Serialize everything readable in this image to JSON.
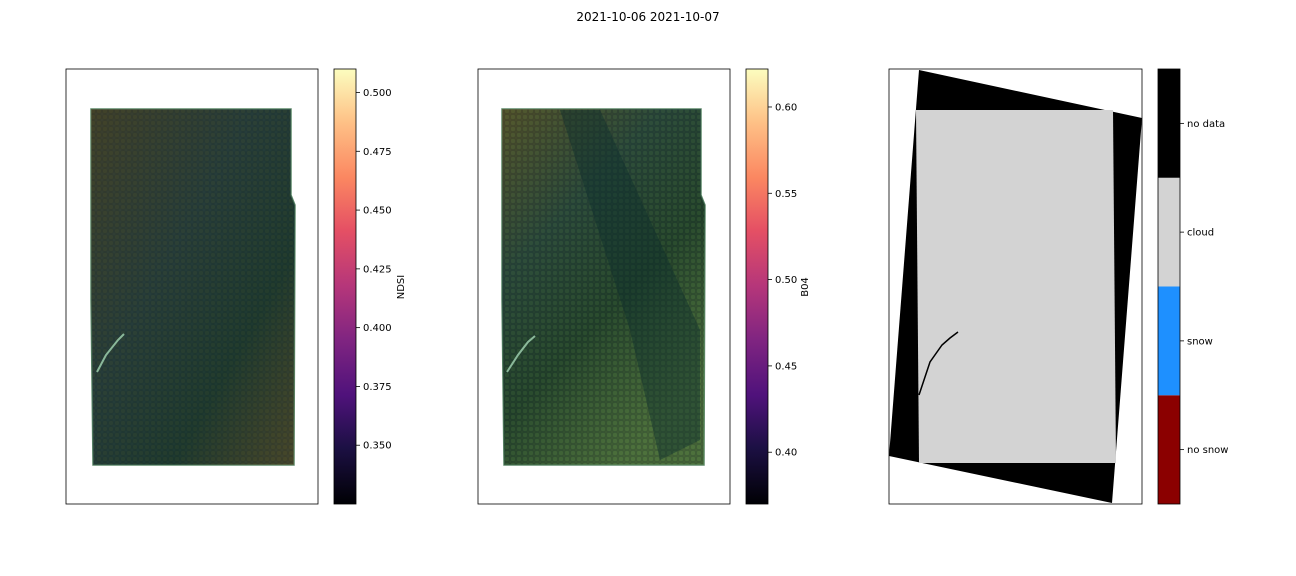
{
  "figure": {
    "title": "2021-10-06 2021-10-07"
  },
  "chart_data": [
    {
      "type": "heatmap",
      "name": "ndsi-map",
      "colorbar": {
        "label": "NDSI",
        "colormap": "magma",
        "range": [
          0.325,
          0.51
        ],
        "ticks": [
          0.35,
          0.375,
          0.4,
          0.425,
          0.45,
          0.475,
          0.5
        ],
        "tick_labels": [
          "0.350",
          "0.375",
          "0.400",
          "0.425",
          "0.450",
          "0.475",
          "0.500"
        ]
      },
      "colors": {
        "base": "#2b3f3c",
        "tint": "#4a3f22",
        "edge": "#5f8a6a"
      }
    },
    {
      "type": "heatmap",
      "name": "b04-map",
      "colorbar": {
        "label": "B04",
        "colormap": "magma",
        "range": [
          0.37,
          0.622
        ],
        "ticks": [
          0.4,
          0.45,
          0.5,
          0.55,
          0.6
        ],
        "tick_labels": [
          "0.40",
          "0.45",
          "0.50",
          "0.55",
          "0.60"
        ]
      },
      "colors": {
        "base": "#3d5234",
        "tint": "#1e3a38",
        "edge": "#5f8a6a"
      }
    },
    {
      "type": "heatmap",
      "name": "snow-classification-map",
      "colorbar": {
        "categories": [
          "no snow",
          "snow",
          "cloud",
          "no data"
        ],
        "colors": [
          "#8b0000",
          "#1e90ff",
          "#d3d3d3",
          "#000000"
        ]
      }
    }
  ]
}
